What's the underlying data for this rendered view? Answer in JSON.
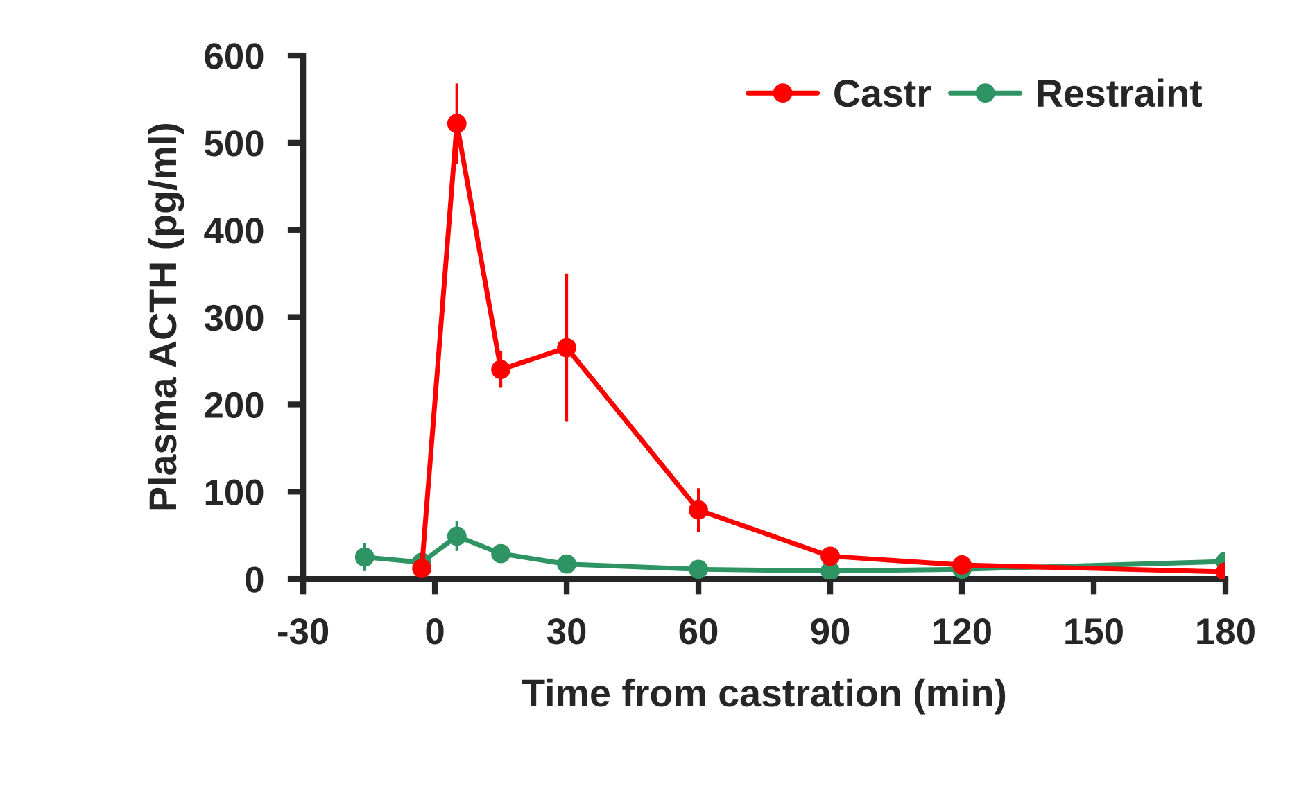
{
  "chart_data": {
    "type": "line",
    "xlabel": "Time from castration (min)",
    "ylabel": "Plasma ACTH (pg/ml)",
    "xlim": [
      -30,
      180
    ],
    "xticks": [
      -30,
      0,
      30,
      60,
      90,
      120,
      150,
      180
    ],
    "ylim": [
      0,
      600
    ],
    "yticks": [
      0,
      100,
      200,
      300,
      400,
      500,
      600
    ],
    "grid": false,
    "legend": "top right",
    "marker": "circle",
    "line_style": "solid",
    "series": [
      {
        "name": "Castr",
        "color": "#ff0000",
        "x": [
          -3,
          5,
          15,
          30,
          60,
          90,
          120,
          180
        ],
        "values": [
          12,
          522,
          240,
          265,
          79,
          26,
          16,
          8
        ],
        "errors": [
          null,
          46,
          21,
          85,
          25,
          null,
          null,
          null
        ]
      },
      {
        "name": "Restraint",
        "color": "#2e9463",
        "x": [
          -16,
          -3,
          5,
          15,
          30,
          60,
          90,
          120,
          180
        ],
        "values": [
          25,
          19,
          49,
          29,
          17,
          11,
          9,
          11,
          20
        ],
        "errors": [
          16,
          null,
          17,
          8,
          null,
          null,
          null,
          null,
          null
        ]
      }
    ]
  }
}
